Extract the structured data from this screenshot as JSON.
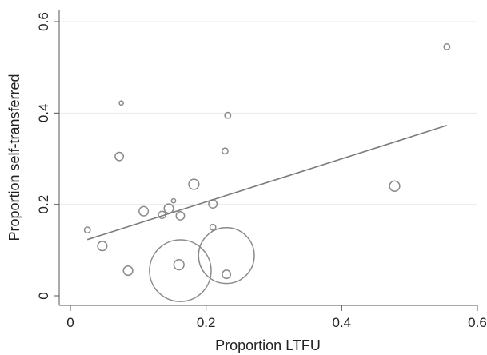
{
  "chart_data": {
    "type": "scatter",
    "xlabel": "Proportion LTFU",
    "ylabel": "Proportion self-transferred",
    "xlim": [
      0,
      0.6
    ],
    "ylim": [
      0,
      0.6
    ],
    "x_ticks": [
      0,
      0.2,
      0.4,
      0.6
    ],
    "x_tick_labels": [
      "0",
      "0.2",
      "0.4",
      "0.6"
    ],
    "y_ticks": [
      0,
      0.2,
      0.4,
      0.6
    ],
    "y_tick_labels": [
      "0",
      "0.2",
      "0.4",
      "0.6"
    ],
    "grid": true,
    "colors": {
      "points": "#8a8a8a",
      "fit_line": "#7a7a7a",
      "axes": "#555555",
      "grid": "#eaeaea"
    },
    "points": [
      {
        "x": 0.555,
        "y": 0.545,
        "size": 2
      },
      {
        "x": 0.075,
        "y": 0.422,
        "size": 1
      },
      {
        "x": 0.232,
        "y": 0.395,
        "size": 2
      },
      {
        "x": 0.228,
        "y": 0.317,
        "size": 2
      },
      {
        "x": 0.072,
        "y": 0.305,
        "size": 4
      },
      {
        "x": 0.182,
        "y": 0.244,
        "size": 6
      },
      {
        "x": 0.478,
        "y": 0.24,
        "size": 6
      },
      {
        "x": 0.152,
        "y": 0.208,
        "size": 1
      },
      {
        "x": 0.21,
        "y": 0.201,
        "size": 4
      },
      {
        "x": 0.145,
        "y": 0.191,
        "size": 5
      },
      {
        "x": 0.108,
        "y": 0.185,
        "size": 5
      },
      {
        "x": 0.135,
        "y": 0.177,
        "size": 3
      },
      {
        "x": 0.162,
        "y": 0.175,
        "size": 4
      },
      {
        "x": 0.21,
        "y": 0.15,
        "size": 2
      },
      {
        "x": 0.025,
        "y": 0.144,
        "size": 2
      },
      {
        "x": 0.047,
        "y": 0.109,
        "size": 5
      },
      {
        "x": 0.23,
        "y": 0.088,
        "size": 180
      },
      {
        "x": 0.16,
        "y": 0.068,
        "size": 6
      },
      {
        "x": 0.085,
        "y": 0.055,
        "size": 5
      },
      {
        "x": 0.162,
        "y": 0.055,
        "size": 220
      },
      {
        "x": 0.23,
        "y": 0.047,
        "size": 4
      }
    ],
    "fit_line": {
      "x": [
        0.025,
        0.555
      ],
      "y": [
        0.123,
        0.373
      ]
    }
  }
}
